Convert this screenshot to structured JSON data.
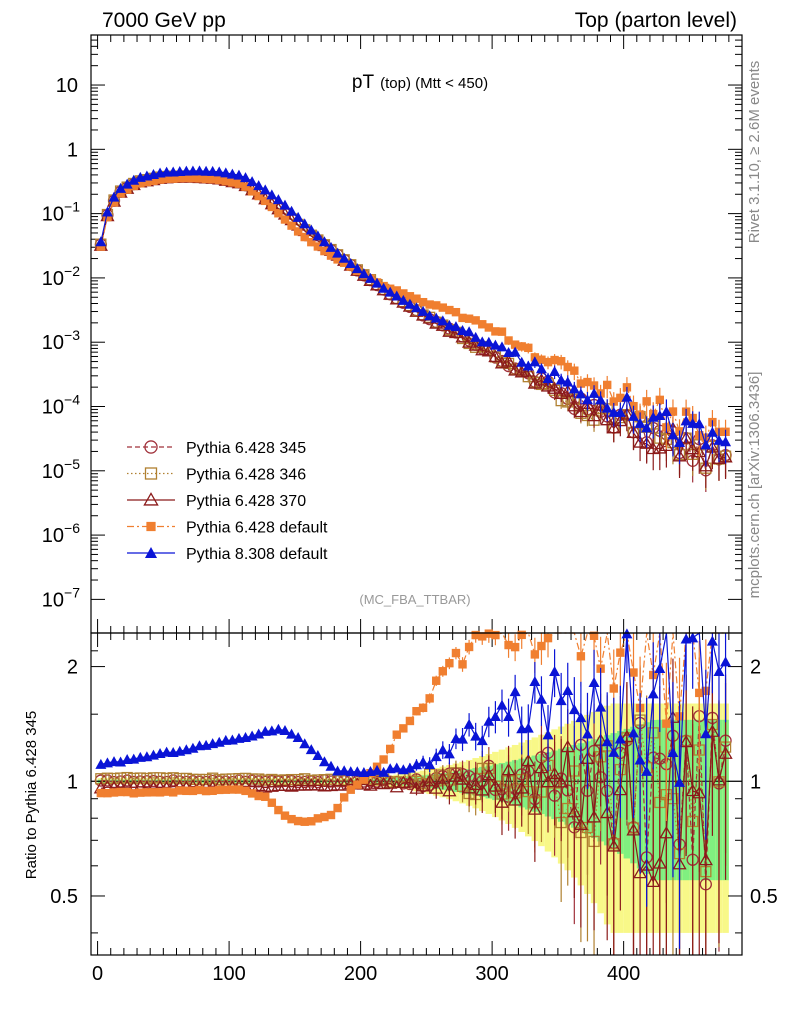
{
  "header": {
    "left": "7000 GeV pp",
    "right": "Top (parton level)"
  },
  "side": {
    "rivet": "Rivet 3.1.10, ≥ 2.6M events",
    "mcplots": "mcplots.cern.ch [arXiv:1306.3436]"
  },
  "chart_data": [
    {
      "type": "scatter",
      "panel": "main",
      "title_main": "pT",
      "title_sub": "(top) (Mtt < 450)",
      "analysis_tag": "(MC_FBA_TTBAR)",
      "xlabel": "",
      "ylabel": "",
      "xlim": [
        -5,
        490
      ],
      "ylim": [
        3e-08,
        60
      ],
      "yscale": "log",
      "y_tick_labels": [
        "10",
        "1",
        "10^-1",
        "10^-2",
        "10^-3",
        "10^-4",
        "10^-5",
        "10^-6",
        "10^-7"
      ],
      "y_tick_values": [
        10,
        1,
        0.1,
        0.01,
        0.001,
        0.0001,
        1e-05,
        1e-06,
        1e-07
      ],
      "legend_position": "lower-left",
      "series": [
        {
          "name": "Pythia 6.428 345",
          "color": "#a0303a",
          "marker": "open-circle",
          "line": "dashed"
        },
        {
          "name": "Pythia 6.428 346",
          "color": "#b08030",
          "marker": "open-square",
          "line": "dotted"
        },
        {
          "name": "Pythia 6.428 370",
          "color": "#8b1a1a",
          "marker": "open-triangle",
          "line": "solid"
        },
        {
          "name": "Pythia 6.428 default",
          "color": "#f07f30",
          "marker": "filled-square",
          "line": "dashdot"
        },
        {
          "name": "Pythia 8.308 default",
          "color": "#0a14d6",
          "marker": "filled-triangle",
          "line": "solid"
        }
      ],
      "curves": {
        "x_start": 2.5,
        "x_step": 5,
        "count": 96,
        "reference_anchors": [
          [
            2.5,
            0.033
          ],
          [
            7.5,
            0.095
          ],
          [
            12.5,
            0.16
          ],
          [
            17.5,
            0.22
          ],
          [
            30,
            0.31
          ],
          [
            50,
            0.37
          ],
          [
            70,
            0.38
          ],
          [
            90,
            0.36
          ],
          [
            110,
            0.3
          ],
          [
            125,
            0.19
          ],
          [
            140,
            0.11
          ],
          [
            160,
            0.05
          ],
          [
            180,
            0.025
          ],
          [
            200,
            0.012
          ],
          [
            220,
            0.006
          ],
          [
            250,
            0.0025
          ],
          [
            280,
            0.0011
          ],
          [
            310,
            0.0005
          ],
          [
            340,
            0.00022
          ],
          [
            370,
            0.0001
          ],
          [
            400,
            6e-05
          ],
          [
            430,
            3.5e-05
          ],
          [
            460,
            2e-05
          ],
          [
            480,
            1.3e-05
          ]
        ],
        "ratio_anchors": {
          "Pythia 6.428 345": [
            [
              0,
              1.0
            ],
            [
              480,
              1.0
            ]
          ],
          "Pythia 6.428 346": [
            [
              0,
              1.02
            ],
            [
              150,
              1.01
            ],
            [
              480,
              1.0
            ]
          ],
          "Pythia 6.428 370": [
            [
              0,
              0.96
            ],
            [
              150,
              0.97
            ],
            [
              200,
              0.98
            ],
            [
              480,
              1.0
            ]
          ],
          "Pythia 6.428 default": [
            [
              0,
              0.93
            ],
            [
              110,
              0.95
            ],
            [
              130,
              0.9
            ],
            [
              140,
              0.82
            ],
            [
              150,
              0.79
            ],
            [
              160,
              0.78
            ],
            [
              170,
              0.8
            ],
            [
              180,
              0.82
            ],
            [
              190,
              0.93
            ],
            [
              200,
              1.0
            ],
            [
              215,
              1.1
            ],
            [
              230,
              1.35
            ],
            [
              250,
              1.6
            ],
            [
              270,
              2.05
            ],
            [
              290,
              2.3
            ],
            [
              320,
              2.6
            ],
            [
              480,
              2.6
            ]
          ],
          "Pythia 8.308 default": [
            [
              0,
              1.1
            ],
            [
              60,
              1.2
            ],
            [
              110,
              1.3
            ],
            [
              140,
              1.38
            ],
            [
              150,
              1.32
            ],
            [
              170,
              1.15
            ],
            [
              180,
              1.07
            ],
            [
              200,
              1.05
            ],
            [
              220,
              1.06
            ],
            [
              260,
              1.15
            ],
            [
              300,
              1.45
            ],
            [
              340,
              1.6
            ],
            [
              380,
              1.75
            ],
            [
              420,
              1.85
            ],
            [
              480,
              1.9
            ]
          ]
        }
      }
    },
    {
      "type": "scatter",
      "panel": "ratio",
      "ylabel": "Ratio to Pythia 6.428 345",
      "xlim": [
        -5,
        490
      ],
      "ylim": [
        0.35,
        2.45
      ],
      "yscale": "log",
      "y_tick_labels": [
        "2",
        "1",
        "0.5"
      ],
      "y_tick_values": [
        2,
        1,
        0.5
      ],
      "x_tick_labels": [
        "0",
        "100",
        "200",
        "300",
        "400"
      ],
      "x_tick_values": [
        0,
        100,
        200,
        300,
        400
      ],
      "bands": [
        "#80f080",
        "#f8f888"
      ]
    }
  ]
}
